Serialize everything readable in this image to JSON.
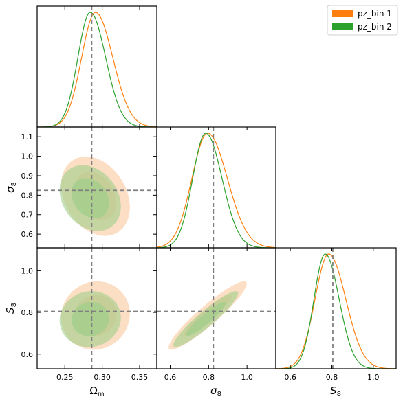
{
  "chart_data": {
    "type": "corner",
    "parameters": [
      {
        "key": "Om",
        "label_main": "Ω",
        "label_sub": "m",
        "range": [
          0.213,
          0.373
        ],
        "ticks": [
          0.25,
          0.3,
          0.35
        ],
        "tick_labels": [
          "0.25",
          "0.30",
          "0.35"
        ]
      },
      {
        "key": "s8",
        "label_main": "σ",
        "label_sub": "8",
        "range": [
          0.53,
          1.15
        ],
        "ticks": [
          0.6,
          0.7,
          0.8,
          0.9,
          1.0,
          1.1
        ],
        "tick_labels": [
          "0.6",
          "0.7",
          "0.8",
          "0.9",
          "1.0",
          "1.1"
        ],
        "x_ticks": [
          0.6,
          0.8,
          1.0
        ],
        "x_tick_labels": [
          "0.6",
          "0.8",
          "1.0"
        ]
      },
      {
        "key": "S8",
        "label_main": "S",
        "label_sub": "8",
        "range": [
          0.53,
          1.11
        ],
        "ticks": [
          0.6,
          0.8,
          1.0
        ],
        "tick_labels": [
          "0.6",
          "0.8",
          "1.0"
        ]
      }
    ],
    "truth": [
      0.286,
      0.825,
      0.805
    ],
    "series": [
      {
        "name": "pz_bin 1",
        "line_color": "#ff7f0e",
        "fill_color": "#f9c89d",
        "mean": [
          0.291,
          0.795,
          0.785
        ],
        "sd": [
          0.0185,
          0.082,
          0.066
        ],
        "corr": {
          "Om_s8": -0.28,
          "Om_S8": 0.05,
          "s8_S8": 0.93
        }
      },
      {
        "name": "pz_bin 2",
        "line_color": "#2ca02c",
        "fill_color": "#a2cf8c",
        "mean": [
          0.284,
          0.785,
          0.768
        ],
        "sd": [
          0.0165,
          0.068,
          0.054
        ],
        "corr": {
          "Om_s8": -0.25,
          "Om_S8": 0.05,
          "s8_S8": 0.93
        }
      }
    ],
    "legend_position": "top-right",
    "grid": false
  }
}
